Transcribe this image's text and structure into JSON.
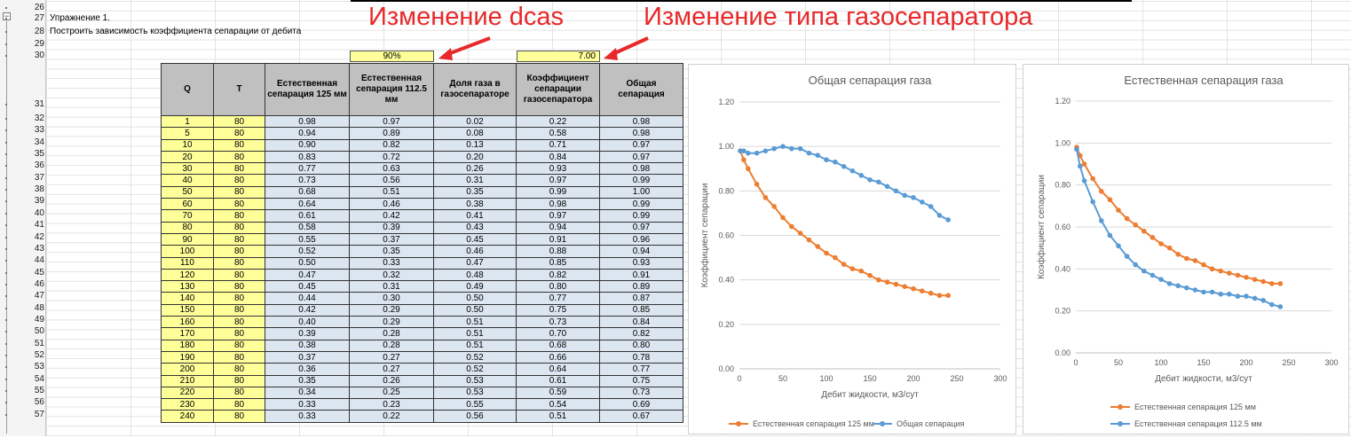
{
  "annotations": {
    "dcas": "Изменение dcas",
    "separator_type": "Изменение типа газосепаратора"
  },
  "sheet": {
    "row_numbers": [
      "26",
      "27",
      "28",
      "29",
      "30",
      "31",
      "32",
      "33",
      "34",
      "35",
      "36",
      "37",
      "38",
      "39",
      "40",
      "41",
      "42",
      "43",
      "44",
      "45",
      "46",
      "47",
      "48",
      "49",
      "50",
      "51",
      "52",
      "53",
      "54",
      "55",
      "56",
      "57"
    ],
    "exercise_title": "Упражнение 1.",
    "task_text": "Построить зависимость коэффициента сепарации от дебита",
    "input_dcas": "90%",
    "input_separator": "7.00"
  },
  "table": {
    "headers": [
      "Q",
      "T",
      "Естественная сепарация 125 мм",
      "Естественная сепарация 112.5 мм",
      "Доля газа в газосепараторе",
      "Коэффициент сепарации газосепаратора",
      "Общая сепарация"
    ],
    "rows": [
      [
        "1",
        "80",
        "0.98",
        "0.97",
        "0.02",
        "0.22",
        "0.98"
      ],
      [
        "5",
        "80",
        "0.94",
        "0.89",
        "0.08",
        "0.58",
        "0.98"
      ],
      [
        "10",
        "80",
        "0.90",
        "0.82",
        "0.13",
        "0.71",
        "0.97"
      ],
      [
        "20",
        "80",
        "0.83",
        "0.72",
        "0.20",
        "0.84",
        "0.97"
      ],
      [
        "30",
        "80",
        "0.77",
        "0.63",
        "0.26",
        "0.93",
        "0.98"
      ],
      [
        "40",
        "80",
        "0.73",
        "0.56",
        "0.31",
        "0.97",
        "0.99"
      ],
      [
        "50",
        "80",
        "0.68",
        "0.51",
        "0.35",
        "0.99",
        "1.00"
      ],
      [
        "60",
        "80",
        "0.64",
        "0.46",
        "0.38",
        "0.98",
        "0.99"
      ],
      [
        "70",
        "80",
        "0.61",
        "0.42",
        "0.41",
        "0.97",
        "0.99"
      ],
      [
        "80",
        "80",
        "0.58",
        "0.39",
        "0.43",
        "0.94",
        "0.97"
      ],
      [
        "90",
        "80",
        "0.55",
        "0.37",
        "0.45",
        "0.91",
        "0.96"
      ],
      [
        "100",
        "80",
        "0.52",
        "0.35",
        "0.46",
        "0.88",
        "0.94"
      ],
      [
        "110",
        "80",
        "0.50",
        "0.33",
        "0.47",
        "0.85",
        "0.93"
      ],
      [
        "120",
        "80",
        "0.47",
        "0.32",
        "0.48",
        "0.82",
        "0.91"
      ],
      [
        "130",
        "80",
        "0.45",
        "0.31",
        "0.49",
        "0.80",
        "0.89"
      ],
      [
        "140",
        "80",
        "0.44",
        "0.30",
        "0.50",
        "0.77",
        "0.87"
      ],
      [
        "150",
        "80",
        "0.42",
        "0.29",
        "0.50",
        "0.75",
        "0.85"
      ],
      [
        "160",
        "80",
        "0.40",
        "0.29",
        "0.51",
        "0.73",
        "0.84"
      ],
      [
        "170",
        "80",
        "0.39",
        "0.28",
        "0.51",
        "0.70",
        "0.82"
      ],
      [
        "180",
        "80",
        "0.38",
        "0.28",
        "0.51",
        "0.68",
        "0.80"
      ],
      [
        "190",
        "80",
        "0.37",
        "0.27",
        "0.52",
        "0.66",
        "0.78"
      ],
      [
        "200",
        "80",
        "0.36",
        "0.27",
        "0.52",
        "0.64",
        "0.77"
      ],
      [
        "210",
        "80",
        "0.35",
        "0.26",
        "0.53",
        "0.61",
        "0.75"
      ],
      [
        "220",
        "80",
        "0.34",
        "0.25",
        "0.53",
        "0.59",
        "0.73"
      ],
      [
        "230",
        "80",
        "0.33",
        "0.23",
        "0.55",
        "0.54",
        "0.69"
      ],
      [
        "240",
        "80",
        "0.33",
        "0.22",
        "0.56",
        "0.51",
        "0.67"
      ]
    ]
  },
  "chart_data": [
    {
      "type": "line",
      "title": "Общая сепарация газа",
      "xlabel": "Дебит жидкости, м3/сут",
      "ylabel": "Коэффициент сепарации",
      "xlim": [
        0,
        300
      ],
      "ylim": [
        0,
        1.2
      ],
      "xticks": [
        "0",
        "50",
        "100",
        "150",
        "200",
        "250",
        "300"
      ],
      "yticks": [
        "0.00",
        "0.20",
        "0.40",
        "0.60",
        "0.80",
        "1.00",
        "1.20"
      ],
      "legend_position": "bottom",
      "x": [
        1,
        5,
        10,
        20,
        30,
        40,
        50,
        60,
        70,
        80,
        90,
        100,
        110,
        120,
        130,
        140,
        150,
        160,
        170,
        180,
        190,
        200,
        210,
        220,
        230,
        240
      ],
      "series": [
        {
          "name": "Естественная сепарация 125 мм",
          "color": "#ed7d31",
          "values": [
            0.98,
            0.94,
            0.9,
            0.83,
            0.77,
            0.73,
            0.68,
            0.64,
            0.61,
            0.58,
            0.55,
            0.52,
            0.5,
            0.47,
            0.45,
            0.44,
            0.42,
            0.4,
            0.39,
            0.38,
            0.37,
            0.36,
            0.35,
            0.34,
            0.33,
            0.33
          ]
        },
        {
          "name": "Общая сепарация",
          "color": "#5b9bd5",
          "values": [
            0.98,
            0.98,
            0.97,
            0.97,
            0.98,
            0.99,
            1.0,
            0.99,
            0.99,
            0.97,
            0.96,
            0.94,
            0.93,
            0.91,
            0.89,
            0.87,
            0.85,
            0.84,
            0.82,
            0.8,
            0.78,
            0.77,
            0.75,
            0.73,
            0.69,
            0.67
          ]
        }
      ]
    },
    {
      "type": "line",
      "title": "Естественная сепарация газа",
      "xlabel": "Дебит жидкости, м3/сут",
      "ylabel": "Коэффициент сепарации",
      "xlim": [
        0,
        300
      ],
      "ylim": [
        0,
        1.2
      ],
      "xticks": [
        "0",
        "50",
        "100",
        "150",
        "200",
        "250",
        "300"
      ],
      "yticks": [
        "0.00",
        "0.20",
        "0.40",
        "0.60",
        "0.80",
        "1.00",
        "1.20"
      ],
      "legend_position": "bottom",
      "x": [
        1,
        5,
        10,
        20,
        30,
        40,
        50,
        60,
        70,
        80,
        90,
        100,
        110,
        120,
        130,
        140,
        150,
        160,
        170,
        180,
        190,
        200,
        210,
        220,
        230,
        240
      ],
      "series": [
        {
          "name": "Естественная сепарация 125 мм",
          "color": "#ed7d31",
          "values": [
            0.98,
            0.94,
            0.9,
            0.83,
            0.77,
            0.73,
            0.68,
            0.64,
            0.61,
            0.58,
            0.55,
            0.52,
            0.5,
            0.47,
            0.45,
            0.44,
            0.42,
            0.4,
            0.39,
            0.38,
            0.37,
            0.36,
            0.35,
            0.34,
            0.33,
            0.33
          ]
        },
        {
          "name": "Естественная сепарация 112.5 мм",
          "color": "#5b9bd5",
          "values": [
            0.97,
            0.89,
            0.82,
            0.72,
            0.63,
            0.56,
            0.51,
            0.46,
            0.42,
            0.39,
            0.37,
            0.35,
            0.33,
            0.32,
            0.31,
            0.3,
            0.29,
            0.29,
            0.28,
            0.28,
            0.27,
            0.27,
            0.26,
            0.25,
            0.23,
            0.22
          ]
        }
      ]
    }
  ]
}
